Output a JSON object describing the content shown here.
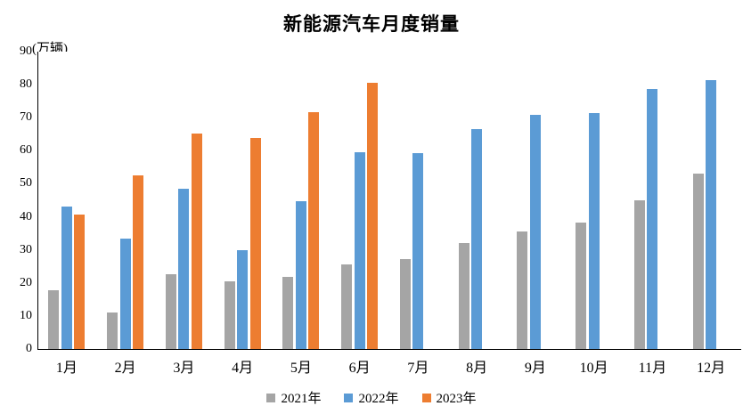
{
  "title": "新能源汽车月度销量",
  "unit_label": "(万辆)",
  "colors": {
    "series_2021": "#A5A5A5",
    "series_2022": "#5B9BD5",
    "series_2023": "#ED7D31",
    "axis": "#000000",
    "text": "#000000",
    "background": "#FFFFFF"
  },
  "chart_data": {
    "type": "bar",
    "title": "新能源汽车月度销量",
    "xlabel": "",
    "ylabel": "(万辆)",
    "categories": [
      "1月",
      "2月",
      "3月",
      "4月",
      "5月",
      "6月",
      "7月",
      "8月",
      "9月",
      "10月",
      "11月",
      "12月"
    ],
    "series": [
      {
        "name": "2021年",
        "color": "#A5A5A5",
        "values": [
          17.9,
          11.0,
          22.6,
          20.6,
          21.7,
          25.6,
          27.1,
          32.1,
          35.7,
          38.3,
          45.0,
          53.1
        ]
      },
      {
        "name": "2022年",
        "color": "#5B9BD5",
        "values": [
          43.1,
          33.4,
          48.4,
          29.9,
          44.7,
          59.6,
          59.3,
          66.6,
          70.8,
          71.4,
          78.6,
          81.4
        ]
      },
      {
        "name": "2023年",
        "color": "#ED7D31",
        "values": [
          40.8,
          52.5,
          65.3,
          63.9,
          71.7,
          80.6,
          null,
          null,
          null,
          null,
          null,
          null
        ]
      }
    ],
    "ylim": [
      0,
      90
    ],
    "yticks": [
      0,
      10,
      20,
      30,
      40,
      50,
      60,
      70,
      80,
      90
    ],
    "grid": false,
    "legend_position": "bottom"
  }
}
